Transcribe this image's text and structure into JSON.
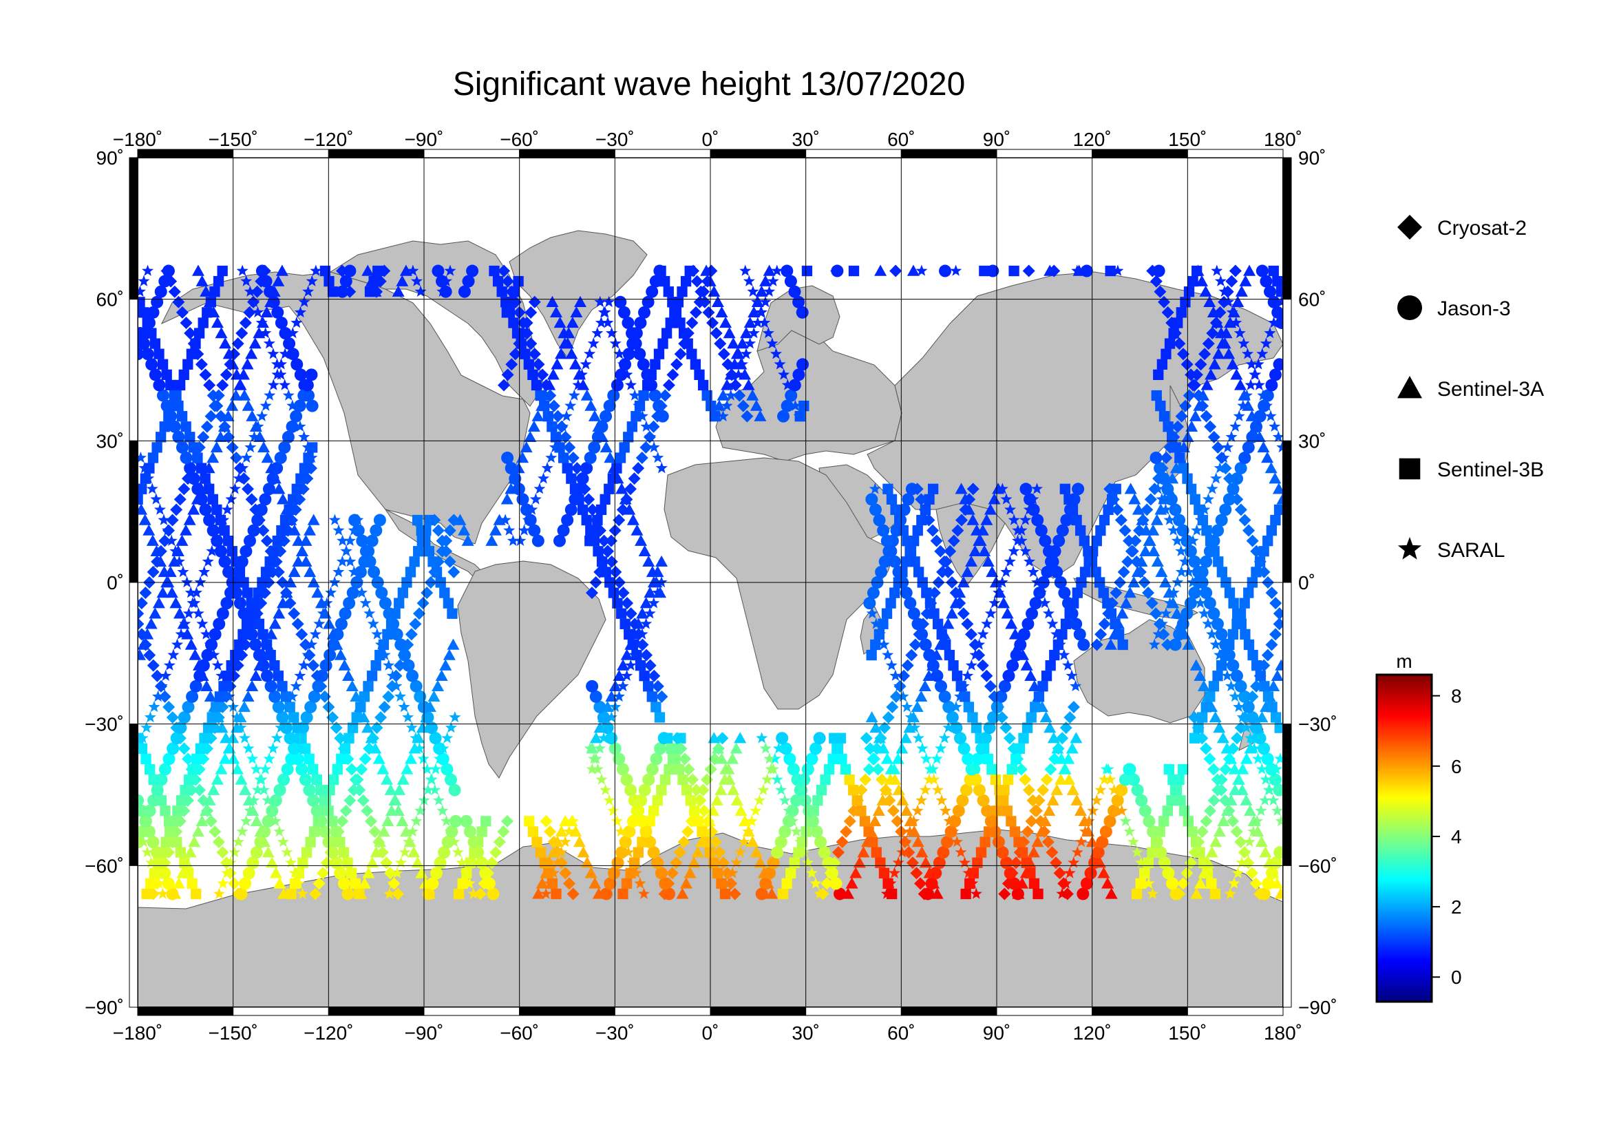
{
  "title": "Significant wave height 13/07/2020",
  "lon_ticks": [
    "−180˚",
    "−150˚",
    "−120˚",
    "−90˚",
    "−60˚",
    "−30˚",
    "0˚",
    "30˚",
    "60˚",
    "90˚",
    "120˚",
    "150˚",
    "180˚"
  ],
  "lat_ticks_left": [
    "90˚",
    "60˚",
    "30˚",
    "0˚",
    "−30˚",
    "−60˚",
    "−90˚"
  ],
  "lat_ticks_right": [
    "90˚",
    "60˚",
    "30˚",
    "0˚",
    "−30˚",
    "−60˚",
    "−90˚"
  ],
  "legend": [
    {
      "label": "Cryosat-2",
      "symbol": "diamond"
    },
    {
      "label": "Jason-3",
      "symbol": "circle"
    },
    {
      "label": "Sentinel-3A",
      "symbol": "triangle"
    },
    {
      "label": "Sentinel-3B",
      "symbol": "square"
    },
    {
      "label": "SARAL",
      "symbol": "star"
    }
  ],
  "colorbar": {
    "unit": "m",
    "ticks": [
      "8",
      "6",
      "4",
      "2",
      "0"
    ],
    "min": -0.7,
    "max": 8.6,
    "colors": [
      "#00007f",
      "#0000ff",
      "#007fff",
      "#00ffff",
      "#7fff7f",
      "#ffff00",
      "#ff7f00",
      "#ff0000",
      "#7f0000"
    ]
  },
  "colors": {
    "land": "#c0c0c0",
    "ocean": "#ffffff",
    "grid": "#000000"
  }
}
